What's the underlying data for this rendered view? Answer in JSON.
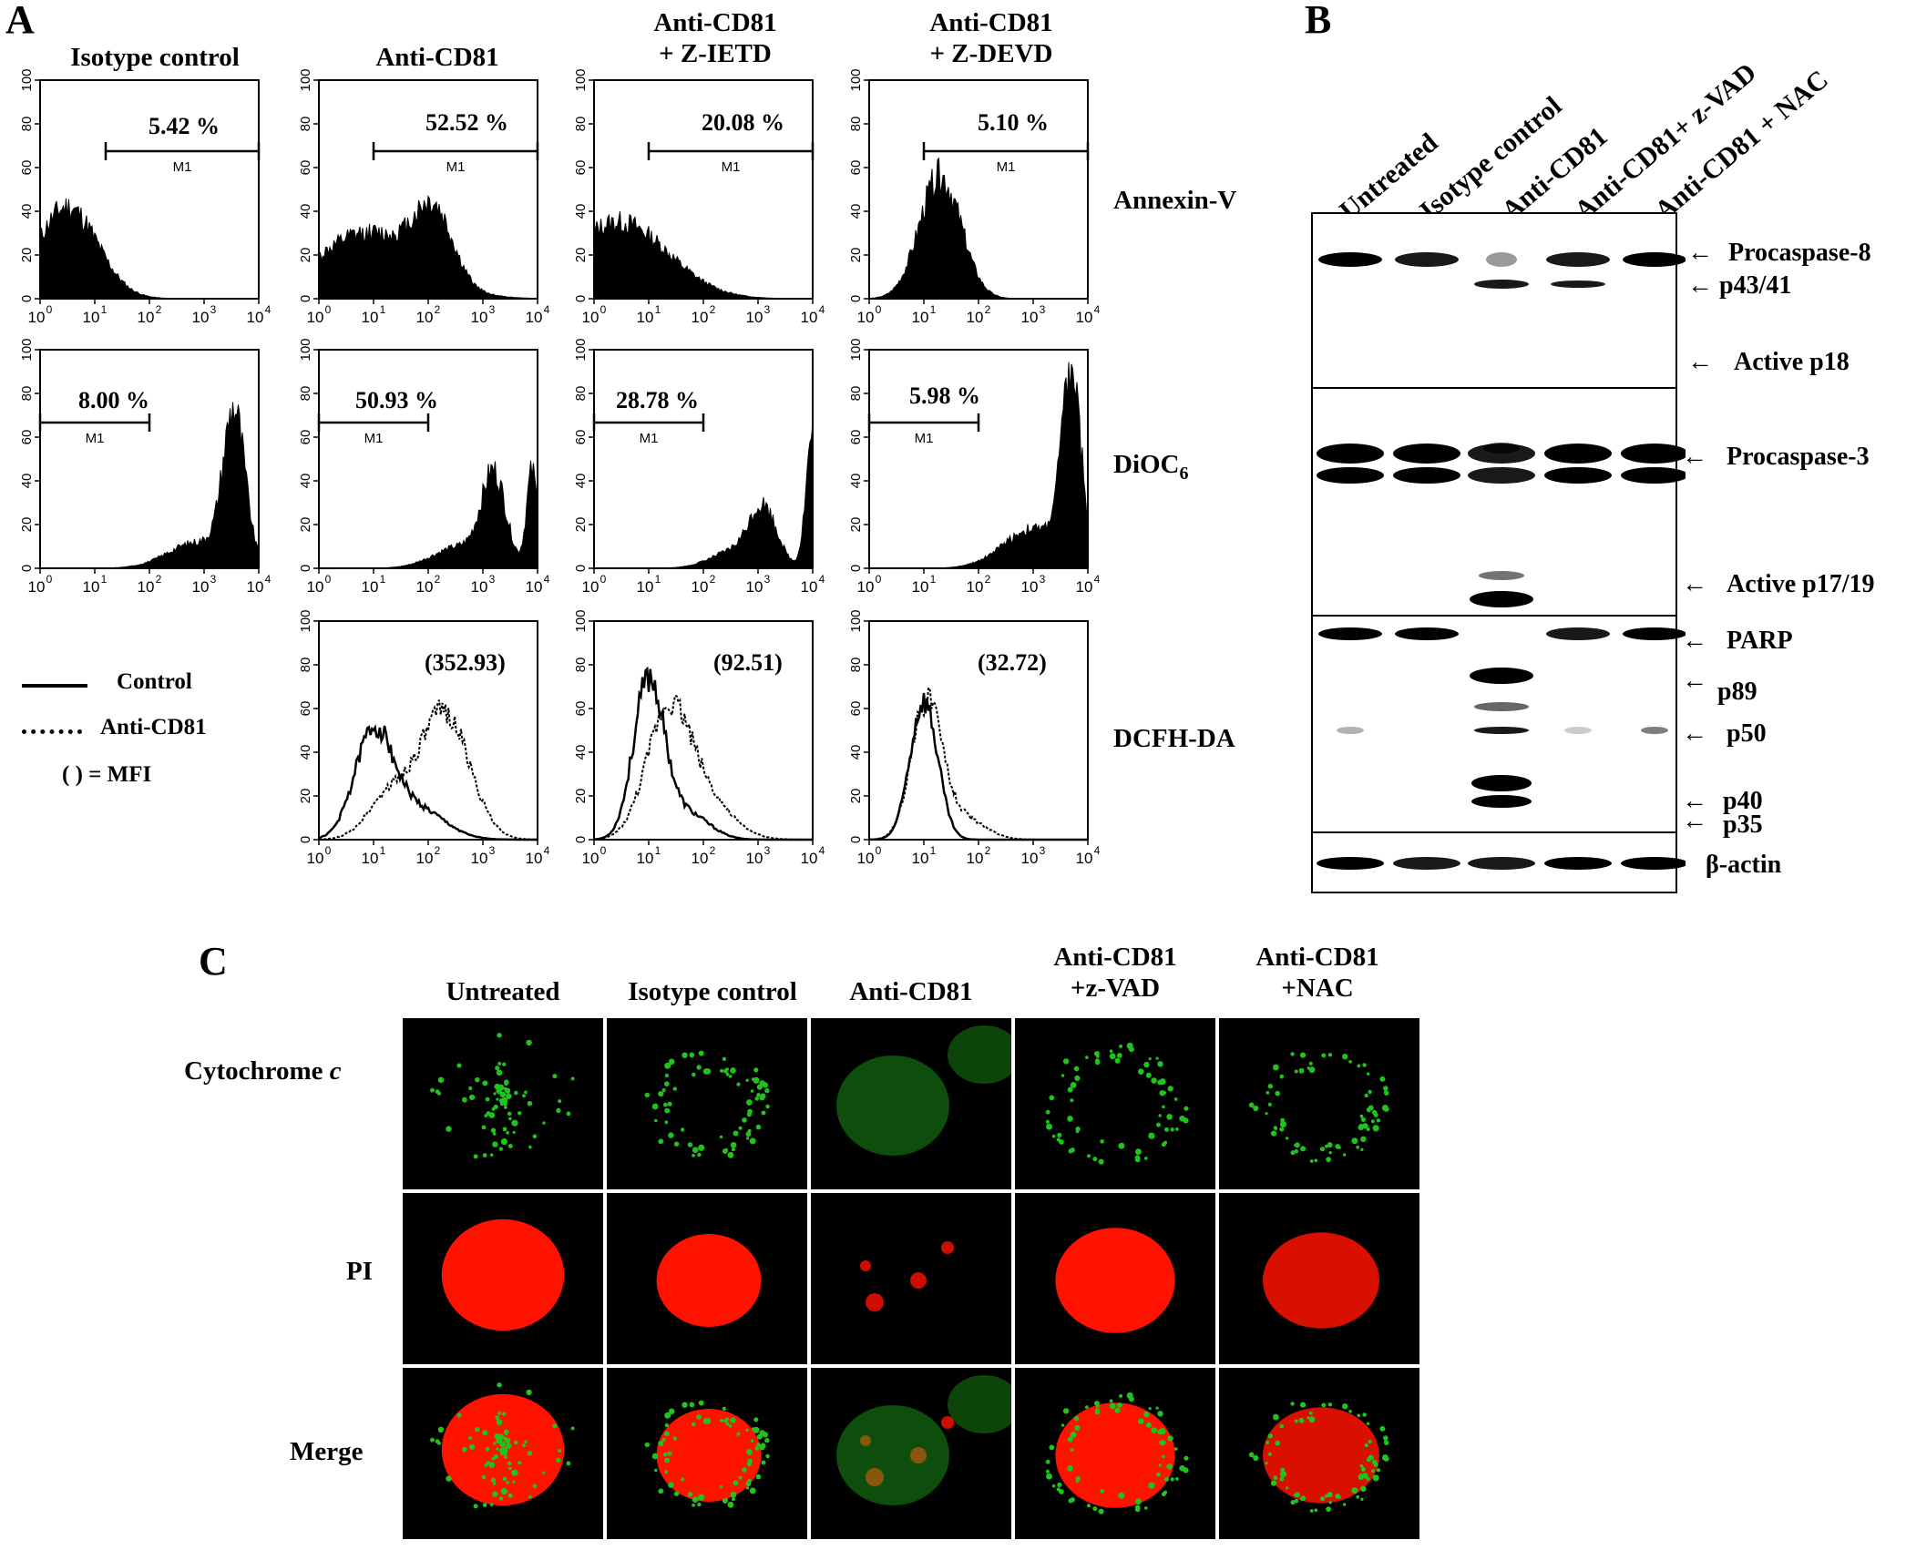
{
  "panel_letters": {
    "a": "A",
    "b": "B",
    "c": "C"
  },
  "panel_a": {
    "column_headers": [
      {
        "line1": "Isotype control",
        "line2": ""
      },
      {
        "line1": "Anti-CD81",
        "line2": ""
      },
      {
        "line1": "Anti-CD81",
        "line2": "+ Z-IETD"
      },
      {
        "line1": "Anti-CD81",
        "line2": "+ Z-DEVD"
      }
    ],
    "row_labels": {
      "annexin": "Annexin-V",
      "dioc_main": "DiOC",
      "dioc_sub": "6",
      "dcfh": "DCFH-DA"
    },
    "marker_label": "M1",
    "x_ticks": [
      "10",
      "10",
      "10",
      "10",
      "10"
    ],
    "x_tick_exp": [
      "0",
      "1",
      "2",
      "3",
      "4"
    ],
    "y_ticks": [
      "0",
      "20",
      "40",
      "60",
      "80",
      "100"
    ],
    "annexin_percent": [
      "5.42 %",
      "52.52 %",
      "20.08 %",
      "5.10 %"
    ],
    "dioc_percent": [
      "8.00 %",
      "50.93 %",
      "28.78 %",
      "5.98 %"
    ],
    "dcfh_mfi": [
      "(352.93)",
      "(92.51)",
      "(32.72)"
    ],
    "legend": {
      "control": "Control",
      "anti": "Anti-CD81",
      "mfi": "( ) = MFI"
    }
  },
  "panel_b": {
    "lanes": [
      "Untreated",
      "Isotype control",
      "Anti-CD81",
      "Anti-CD81+ z-VAD",
      "Anti-CD81 + NAC"
    ],
    "bands": {
      "procasp8": "Procaspase-8",
      "p4341": "p43/41",
      "p18": "Active p18",
      "procasp3": "Procaspase-3",
      "p1719": "Active p17/19",
      "parp": "PARP",
      "p89": "p89",
      "p50": "p50",
      "p40": "p40",
      "p35": "p35",
      "actin": "β-actin"
    }
  },
  "panel_c": {
    "columns": [
      {
        "line1": "Untreated",
        "line2": ""
      },
      {
        "line1": "Isotype control",
        "line2": ""
      },
      {
        "line1": "Anti-CD81",
        "line2": ""
      },
      {
        "line1": "Anti-CD81",
        "line2": "+z-VAD"
      },
      {
        "line1": "Anti-CD81",
        "line2": "+NAC"
      }
    ],
    "rows": {
      "cyto_main": "Cytochrome",
      "cyto_italic": "c",
      "pi": "PI",
      "merge": "Merge"
    }
  },
  "colors": {
    "green": "#22c21e",
    "red": "#ff1200",
    "black": "#000000"
  }
}
